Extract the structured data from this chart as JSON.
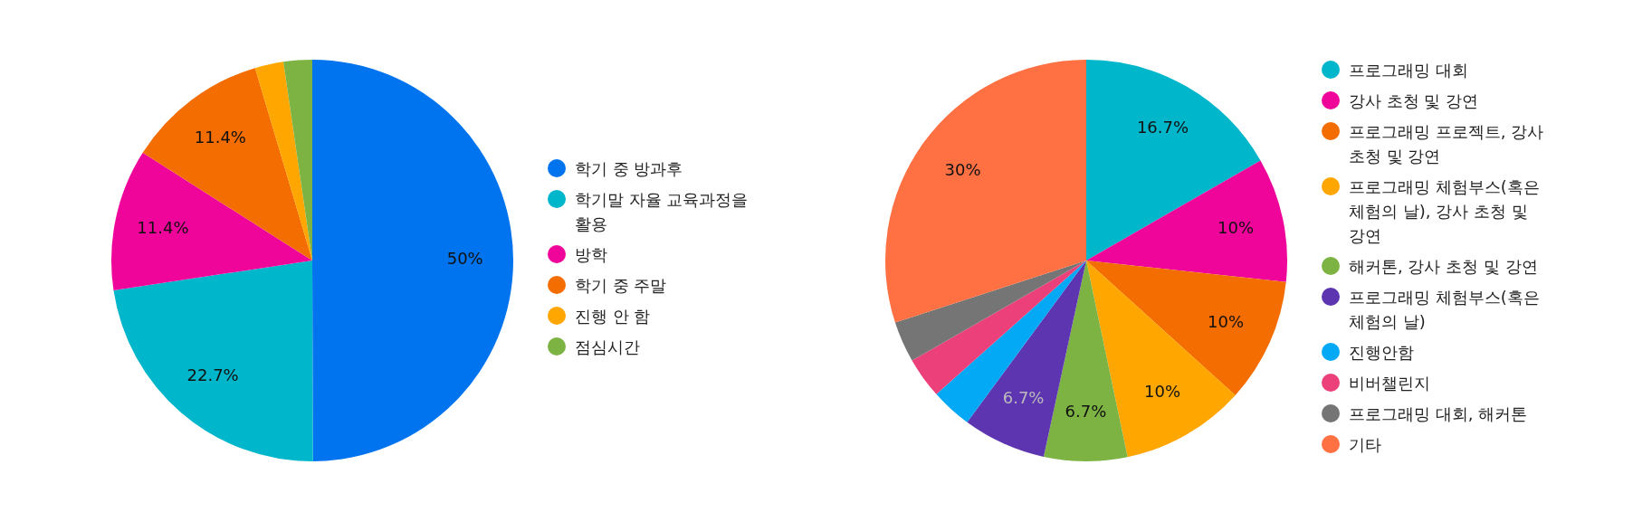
{
  "chart_data": [
    {
      "type": "pie",
      "categories": [
        "학기 중 방과후",
        "학기말 자율 교육과정을 활용",
        "방학",
        "학기 중 주말",
        "진행 안 함",
        "점심시간"
      ],
      "values": [
        50,
        22.7,
        11.4,
        11.4,
        2.3,
        2.3
      ],
      "colors": [
        "#0073ee",
        "#00b6cb",
        "#f0059b",
        "#f46d00",
        "#ffa600",
        "#7cb342"
      ],
      "value_labels": [
        "50%",
        "22.7%",
        "11.4%",
        "11.4%",
        null,
        null
      ],
      "legend": "right"
    },
    {
      "type": "pie",
      "categories": [
        "프로그래밍 대회",
        "강사 초청 및 강연",
        "프로그래밍 프로젝트, 강사 초청 및 강연",
        "프로그래밍 체험부스(혹은 체험의 날), 강사 초청 및 강연",
        "해커톤, 강사 초청 및 강연",
        "프로그래밍 체험부스(혹은 체험의 날)",
        "진행안함",
        "비버챌린지",
        "프로그래밍 대회, 해커톤",
        "기타"
      ],
      "values": [
        16.7,
        10,
        10,
        10,
        6.7,
        6.7,
        3.3,
        3.3,
        3.3,
        30
      ],
      "colors": [
        "#00b6cb",
        "#f0059b",
        "#f46d00",
        "#ffa600",
        "#7cb342",
        "#5e35b1",
        "#03a9f4",
        "#ec407a",
        "#757575",
        "#ff7043"
      ],
      "value_labels": [
        "16.7%",
        "10%",
        "10%",
        "10%",
        "6.7%",
        "6.7%",
        null,
        null,
        null,
        "30%"
      ],
      "legend": "right"
    }
  ]
}
